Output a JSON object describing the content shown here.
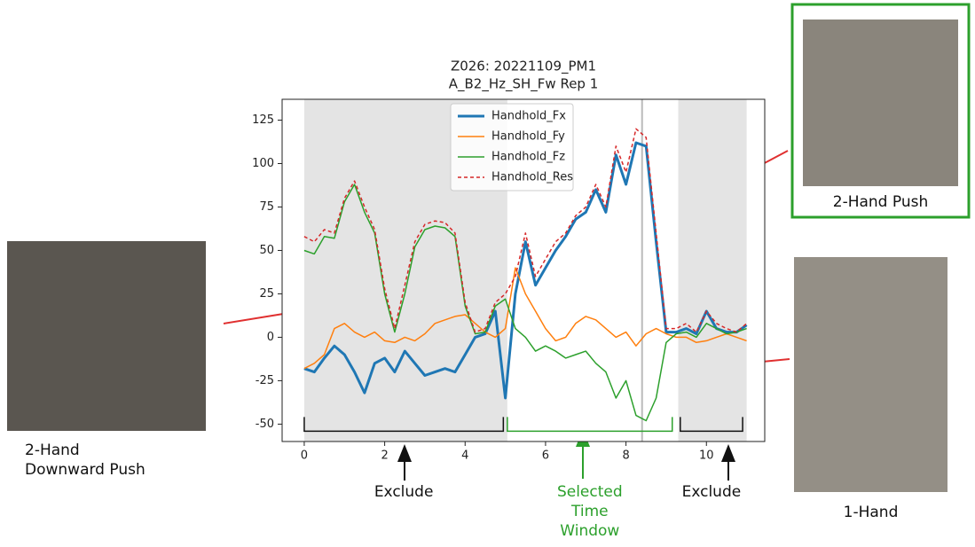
{
  "chart_data": {
    "type": "line",
    "title": "Z026: 20221109_PM1",
    "subtitle": "A_B2_Hz_SH_Fw Rep 1",
    "x": [
      0,
      0.25,
      0.5,
      0.75,
      1,
      1.25,
      1.5,
      1.75,
      2,
      2.25,
      2.5,
      2.75,
      3,
      3.25,
      3.5,
      3.75,
      4,
      4.25,
      4.5,
      4.75,
      5,
      5.25,
      5.5,
      5.75,
      6,
      6.25,
      6.5,
      6.75,
      7,
      7.25,
      7.5,
      7.75,
      8,
      8.25,
      8.5,
      8.75,
      9,
      9.25,
      9.5,
      9.75,
      10,
      10.25,
      10.5,
      10.75,
      11
    ],
    "series": [
      {
        "name": "Handhold_Fx",
        "color": "#1f77b4",
        "width": 3,
        "dashed": false,
        "values": [
          -18,
          -20,
          -12,
          -5,
          -10,
          -20,
          -32,
          -15,
          -12,
          -20,
          -8,
          -15,
          -22,
          -20,
          -18,
          -20,
          -10,
          0,
          2,
          15,
          -35,
          25,
          55,
          30,
          40,
          50,
          58,
          68,
          72,
          85,
          72,
          105,
          88,
          112,
          110,
          55,
          3,
          3,
          5,
          2,
          15,
          5,
          3,
          3,
          7
        ]
      },
      {
        "name": "Handhold_Fy",
        "color": "#ff7f0e",
        "width": 1.5,
        "dashed": false,
        "values": [
          -18,
          -15,
          -10,
          5,
          8,
          3,
          0,
          3,
          -2,
          -3,
          0,
          -2,
          2,
          8,
          10,
          12,
          13,
          8,
          3,
          0,
          5,
          40,
          25,
          15,
          5,
          -2,
          0,
          8,
          12,
          10,
          5,
          0,
          3,
          -5,
          2,
          5,
          2,
          0,
          0,
          -3,
          -2,
          0,
          2,
          0,
          -2
        ]
      },
      {
        "name": "Handhold_Fz",
        "color": "#2ca02c",
        "width": 1.5,
        "dashed": false,
        "values": [
          50,
          48,
          58,
          57,
          78,
          88,
          72,
          60,
          25,
          3,
          25,
          52,
          62,
          64,
          63,
          58,
          18,
          2,
          3,
          18,
          22,
          5,
          0,
          -8,
          -5,
          -8,
          -12,
          -10,
          -8,
          -15,
          -20,
          -35,
          -25,
          -45,
          -48,
          -35,
          -3,
          2,
          3,
          0,
          8,
          5,
          2,
          3,
          5
        ]
      },
      {
        "name": "Handhold_Res",
        "color": "#d62728",
        "width": 1.5,
        "dashed": true,
        "values": [
          58,
          55,
          62,
          60,
          80,
          90,
          75,
          62,
          28,
          5,
          30,
          55,
          65,
          67,
          66,
          60,
          20,
          3,
          5,
          20,
          25,
          35,
          60,
          35,
          45,
          55,
          60,
          70,
          75,
          88,
          75,
          110,
          95,
          120,
          115,
          60,
          5,
          5,
          8,
          3,
          15,
          8,
          5,
          3,
          8
        ]
      }
    ],
    "xlim": [
      -0.55,
      11.45
    ],
    "ylim": [
      -60,
      137
    ],
    "xticks": [
      0,
      2,
      4,
      6,
      8,
      10
    ],
    "yticks": [
      -50,
      -25,
      0,
      25,
      50,
      75,
      100,
      125
    ],
    "shaded_regions": [
      [
        0,
        5.05
      ],
      [
        9.3,
        11
      ]
    ],
    "vertical_line": 8.4,
    "legend": "upper center",
    "brackets": [
      {
        "label": "Exclude",
        "start": 0,
        "end": 4.95,
        "color": "#111111"
      },
      {
        "label": "Selected Time Window",
        "start": 5.05,
        "end": 9.15,
        "color": "#2ca02c"
      },
      {
        "label": "Exclude",
        "start": 9.35,
        "end": 10.9,
        "color": "#111111"
      }
    ]
  },
  "photos": [
    {
      "caption": "2-Hand Downward Push"
    },
    {
      "caption": "2-Hand Push"
    },
    {
      "caption": "1-Hand"
    }
  ]
}
